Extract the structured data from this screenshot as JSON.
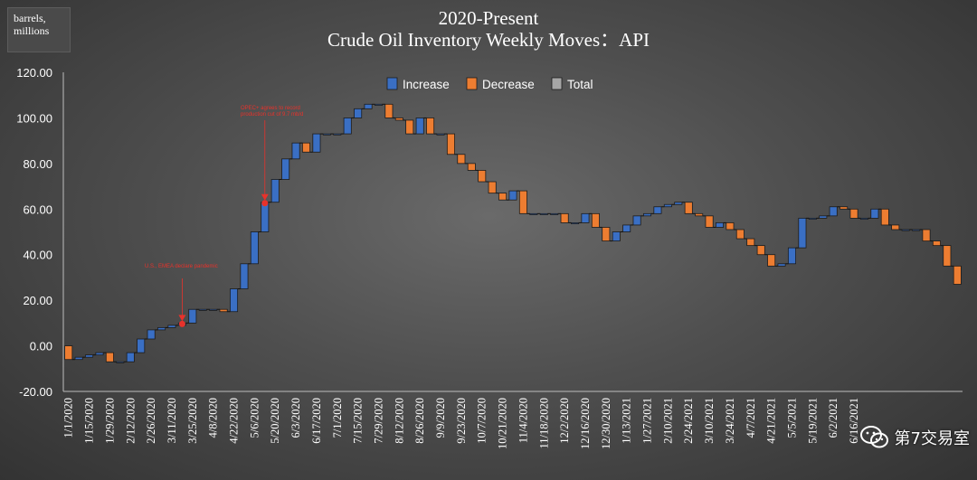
{
  "units_label": [
    "barrels,",
    "millions"
  ],
  "title_lines": [
    "2020-Present",
    "Crude Oil Inventory Weekly Moves：API"
  ],
  "watermark": "第7交易室",
  "colors": {
    "increase": "#3a6fc4",
    "decrease": "#ed7d31",
    "total": "#a6a6a6",
    "annotation": "#e8322b"
  },
  "chart_data": {
    "type": "waterfall",
    "title": "2020-Present Crude Oil Inventory Weekly Moves：API",
    "ylabel": "barrels, millions",
    "ylim": [
      -20,
      120
    ],
    "yticks": [
      "-20.00",
      "0.00",
      "20.00",
      "40.00",
      "60.00",
      "80.00",
      "100.00",
      "120.00"
    ],
    "xticks": [
      "1/1/2020",
      "1/15/2020",
      "1/29/2020",
      "2/12/2020",
      "2/26/2020",
      "3/11/2020",
      "3/25/2020",
      "4/8/2020",
      "4/22/2020",
      "5/6/2020",
      "5/20/2020",
      "6/3/2020",
      "6/17/2020",
      "7/1/2020",
      "7/15/2020",
      "7/29/2020",
      "8/12/2020",
      "8/26/2020",
      "9/9/2020",
      "9/23/2020",
      "10/7/2020",
      "10/21/2020",
      "11/4/2020",
      "11/18/2020",
      "12/2/2020",
      "12/16/2020",
      "12/30/2020",
      "1/13/2021",
      "1/27/2021",
      "2/10/2021",
      "2/24/2021",
      "3/10/2021",
      "3/24/2021",
      "4/7/2021",
      "4/21/2021",
      "5/5/2021",
      "5/19/2021",
      "6/2/2021",
      "6/16/2021"
    ],
    "legend": {
      "position": "top-center",
      "entries": [
        "Increase",
        "Decrease",
        "Total"
      ]
    },
    "levels": [
      0,
      -6,
      -5,
      -4,
      -3,
      -7,
      -7,
      -3,
      3,
      7,
      8,
      9,
      10,
      16,
      16,
      16,
      15,
      25,
      36,
      50,
      63,
      73,
      82,
      89,
      85,
      93,
      93,
      93,
      100,
      104,
      106,
      106,
      100,
      99,
      93,
      100,
      93,
      93,
      84,
      80,
      77,
      72,
      67,
      64,
      68,
      58,
      58,
      58,
      58,
      54,
      54,
      58,
      52,
      46,
      50,
      53,
      57,
      58,
      61,
      62,
      63,
      58,
      57,
      52,
      54,
      51,
      47,
      44,
      40,
      35,
      36,
      43,
      56,
      56,
      57,
      61,
      60,
      56,
      56,
      60,
      53,
      51,
      51,
      51,
      46,
      44,
      35,
      27
    ],
    "annotations": [
      {
        "text": "U.S., EMEA declare pandemic",
        "date": "3/18/2020"
      },
      {
        "text": "OPEC+ agrees to record production cut of 9.7 mb/d",
        "date": "5/13/2020"
      }
    ],
    "grid": false
  }
}
